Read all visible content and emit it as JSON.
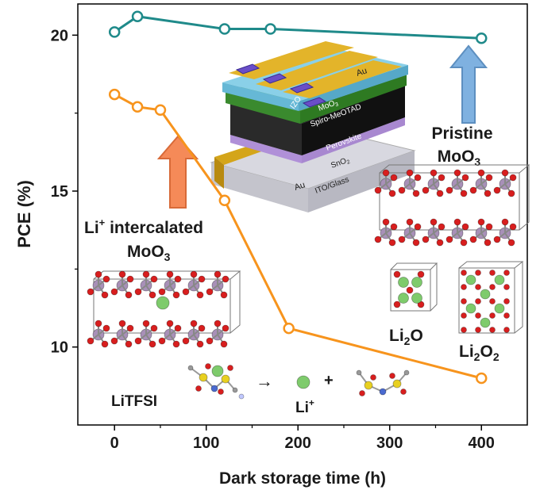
{
  "chart_data": {
    "type": "line",
    "xlabel": "Dark storage time (h)",
    "ylabel": "PCE (%)",
    "xlim": [
      -40,
      450
    ],
    "ylim": [
      7.5,
      21
    ],
    "xticks": [
      0,
      100,
      200,
      300,
      400
    ],
    "yticks": [
      10,
      15,
      20
    ],
    "grid": false,
    "series": [
      {
        "color": "#1f8a8a",
        "x": [
          0,
          25,
          120,
          170,
          400
        ],
        "y": [
          20.1,
          20.6,
          20.2,
          20.2,
          19.9
        ]
      },
      {
        "color": "#f7941d",
        "x": [
          0,
          25,
          50,
          120,
          190,
          400
        ],
        "y": [
          18.1,
          17.7,
          17.6,
          14.7,
          10.6,
          9.0
        ]
      }
    ],
    "annotations": {
      "pristine_l1": "Pristine",
      "pristine_l2": "MoO",
      "pristine_sub": "3",
      "li_int_l1a": "Li",
      "li_int_sup": "+",
      "li_int_l1b": " intercalated",
      "li_int_l2": "MoO",
      "li_int_sub": "3",
      "li2o_a": "Li",
      "li2o_sub": "2",
      "li2o_b": "O",
      "li2o2_a": "Li",
      "li2o2_sub1": "2",
      "li2o2_b": "O",
      "li2o2_sub2": "2",
      "litfsi": "LiTFSI",
      "liplus_a": "Li",
      "liplus_sup": "+",
      "plus": "+",
      "arrow": "→"
    },
    "device_layers": {
      "au_top": "Au",
      "izo": "IZO",
      "moo3_a": "MoO",
      "moo3_sub": "3",
      "spiro": "Spiro-MeOTAD",
      "perovskite": "Perovskite",
      "sno2_a": "SnO",
      "sno2_sub": "2",
      "ito": "ITO/Glass",
      "au_bottom": "Au"
    },
    "colors": {
      "pristine_arrow": "#7fb1e0",
      "lithium_arrow": "#f58a58",
      "mo_atom": "#a890b8",
      "o_atom": "#d81e1e",
      "li_atom": "#7ecb6c"
    }
  }
}
